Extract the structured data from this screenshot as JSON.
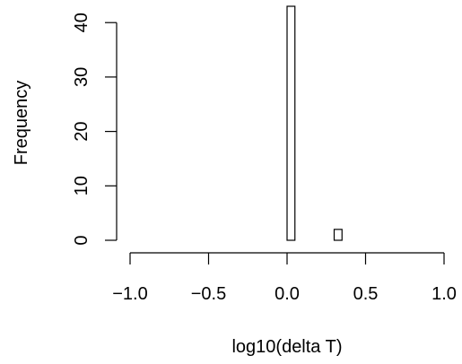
{
  "chart_data": {
    "type": "bar",
    "title": "",
    "xlabel": "log10(delta T)",
    "ylabel": "Frequency",
    "xlim": [
      -1.0,
      1.0
    ],
    "ylim": [
      0,
      43
    ],
    "x_ticks": [
      -1.0,
      -0.5,
      0.0,
      0.5,
      1.0
    ],
    "x_tick_labels": [
      "−1.0",
      "−0.5",
      "0.0",
      "0.5",
      "1.0"
    ],
    "y_ticks": [
      0,
      10,
      20,
      30,
      40
    ],
    "y_tick_labels": [
      "0",
      "10",
      "20",
      "30",
      "40"
    ],
    "bins": [
      {
        "x0": 0.0,
        "x1": 0.05,
        "count": 43
      },
      {
        "x0": 0.05,
        "x1": 0.1,
        "count": 0
      },
      {
        "x0": 0.1,
        "x1": 0.15,
        "count": 0
      },
      {
        "x0": 0.15,
        "x1": 0.2,
        "count": 0
      },
      {
        "x0": 0.2,
        "x1": 0.25,
        "count": 0
      },
      {
        "x0": 0.25,
        "x1": 0.3,
        "count": 0
      },
      {
        "x0": 0.3,
        "x1": 0.35,
        "count": 2
      }
    ],
    "grid": false
  }
}
